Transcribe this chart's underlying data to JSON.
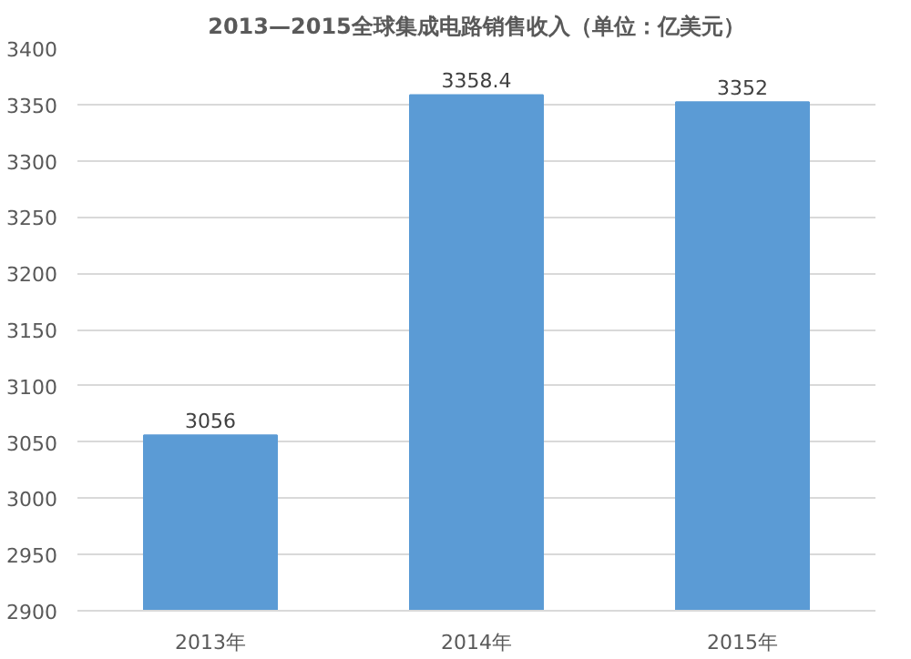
{
  "chart_data": {
    "type": "bar",
    "title": "2013—2015全球集成电路销售收入（单位：亿美元）",
    "categories": [
      "2013年",
      "2014年",
      "2015年"
    ],
    "values": [
      3056,
      3358.4,
      3352
    ],
    "value_labels": [
      "3056",
      "3358.4",
      "3352"
    ],
    "color": "#5b9bd5",
    "ylim": [
      2900,
      3400
    ],
    "yticks": [
      2900,
      2950,
      3000,
      3050,
      3100,
      3150,
      3200,
      3250,
      3300,
      3350,
      3400
    ],
    "grid": "y"
  }
}
